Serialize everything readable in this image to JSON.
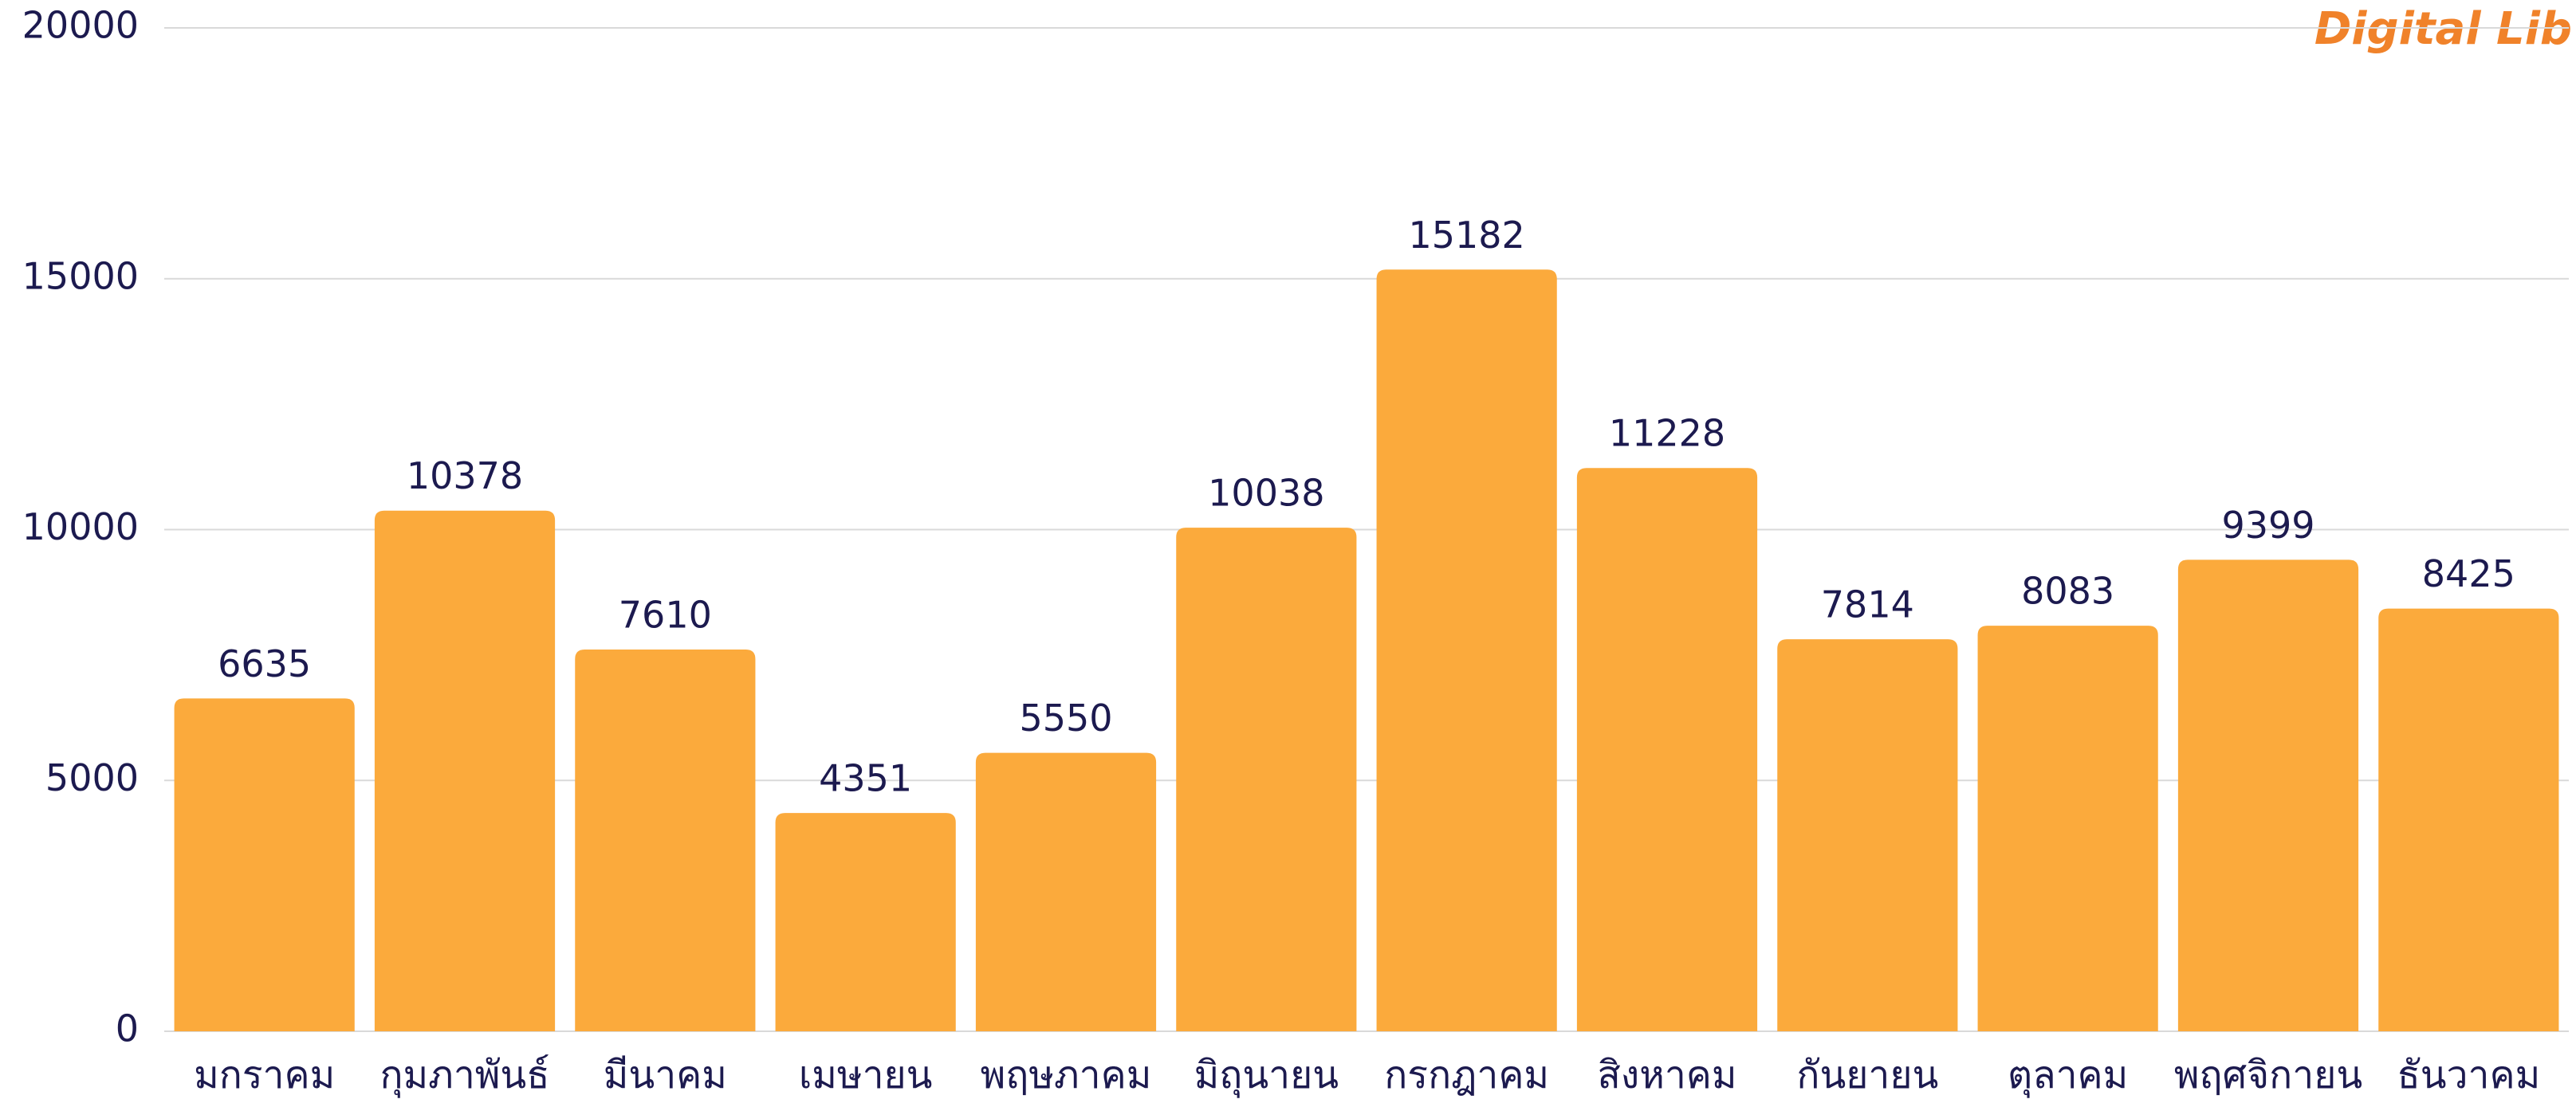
{
  "chart_data": {
    "type": "bar",
    "logo": "Digital Lib",
    "categories": [
      "มกราคม",
      "กุมภาพันธ์",
      "มีนาคม",
      "เมษายน",
      "พฤษภาคม",
      "มิถุนายน",
      "กรกฎาคม",
      "สิงหาคม",
      "กันยายน",
      "ตุลาคม",
      "พฤศจิกายน",
      "ธันวาคม"
    ],
    "values": [
      6635,
      10378,
      7610,
      4351,
      5550,
      10038,
      15182,
      11228,
      7814,
      8083,
      9399,
      8425
    ],
    "color": "#fbaa3c",
    "ylim": [
      0,
      20000
    ],
    "yticks": [
      0,
      5000,
      10000,
      15000,
      20000
    ],
    "grid": true
  }
}
